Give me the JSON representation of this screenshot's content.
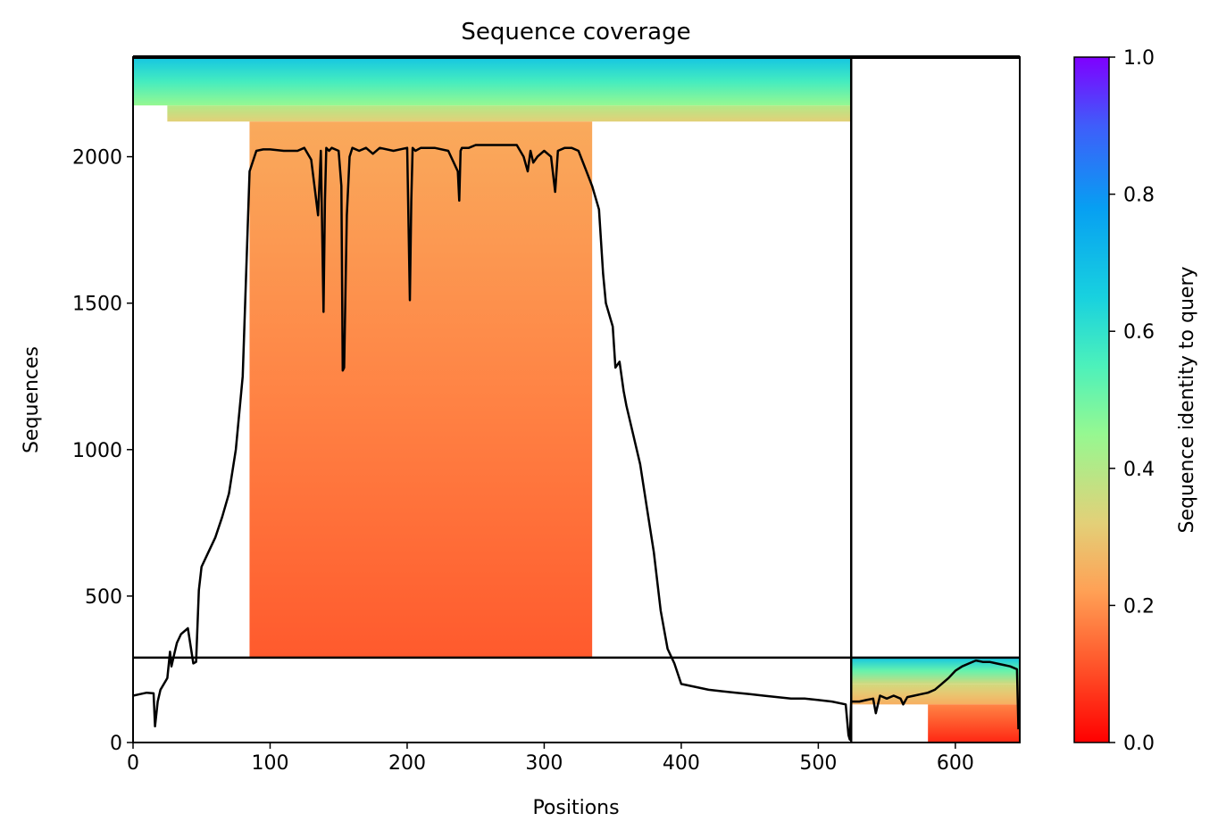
{
  "chart_data": {
    "type": "heatmap",
    "title": "Sequence coverage",
    "xlabel": "Positions",
    "ylabel": "Sequences",
    "xlim": [
      0,
      647
    ],
    "ylim": [
      0,
      2340
    ],
    "x_ticks": [
      0,
      100,
      200,
      300,
      400,
      500,
      600
    ],
    "y_ticks": [
      0,
      500,
      1000,
      1500,
      2000
    ],
    "x_tick_labels": [
      "0",
      "100",
      "200",
      "300",
      "400",
      "500",
      "600"
    ],
    "y_tick_labels": [
      "0",
      "500",
      "1000",
      "1500",
      "2000"
    ],
    "grid": false,
    "colorbar": {
      "label": "Sequence identity to query",
      "range": [
        0,
        1
      ],
      "ticks": [
        0.0,
        0.2,
        0.4,
        0.6,
        0.8,
        1.0
      ],
      "tick_labels": [
        "0.0",
        "0.2",
        "0.4",
        "0.6",
        "0.8",
        "1.0"
      ],
      "colormap": "rainbow_r"
    },
    "chain_boundaries": {
      "x": [
        524
      ],
      "y": [
        290
      ]
    },
    "coverage_blocks": [
      {
        "name": "chain-1",
        "x_range": [
          0,
          524
        ],
        "y_range": [
          290,
          2340
        ],
        "bands": [
          {
            "y_from": 2175,
            "y_to": 2340,
            "x_from": 0,
            "x_to": 524,
            "identity_from": 0.45,
            "identity_to": 0.68
          },
          {
            "y_from": 2120,
            "y_to": 2175,
            "x_from": 25,
            "x_to": 524,
            "identity_from": 0.32,
            "identity_to": 0.4
          },
          {
            "y_from": 290,
            "y_to": 2120,
            "x_from": 85,
            "x_to": 335,
            "identity_from": 0.12,
            "identity_to": 0.24
          }
        ]
      },
      {
        "name": "chain-2",
        "x_range": [
          524,
          647
        ],
        "y_range": [
          0,
          290
        ],
        "bands": [
          {
            "y_from": 200,
            "y_to": 290,
            "x_from": 524,
            "x_to": 647,
            "identity_from": 0.35,
            "identity_to": 0.68
          },
          {
            "y_from": 130,
            "y_to": 200,
            "x_from": 524,
            "x_to": 647,
            "identity_from": 0.25,
            "identity_to": 0.35
          },
          {
            "y_from": 0,
            "y_to": 130,
            "x_from": 580,
            "x_to": 647,
            "identity_from": 0.05,
            "identity_to": 0.18
          }
        ]
      }
    ],
    "series": [
      {
        "x": [
          0,
          5,
          10,
          15,
          16,
          18,
          20,
          25,
          27,
          28,
          30,
          32,
          35,
          40,
          44,
          46,
          48,
          50,
          55,
          60,
          65,
          70,
          75,
          80,
          85,
          90,
          95,
          100,
          110,
          120,
          125,
          130,
          135,
          137,
          139,
          140,
          141,
          143,
          145,
          150,
          152,
          153,
          154,
          156,
          158,
          160,
          165,
          170,
          175,
          180,
          190,
          200,
          202,
          203,
          204,
          206,
          210,
          220,
          230,
          237,
          238,
          239,
          240,
          245,
          250,
          260,
          270,
          280,
          285,
          288,
          290,
          292,
          295,
          300,
          305,
          308,
          310,
          315,
          320,
          325,
          330,
          335,
          340,
          343,
          345,
          350,
          352,
          355,
          358,
          360,
          365,
          370,
          375,
          380,
          385,
          390,
          395,
          400,
          410,
          420,
          430,
          440,
          450,
          460,
          470,
          480,
          490,
          500,
          510,
          520,
          522,
          523,
          524,
          530,
          535,
          540,
          542,
          545,
          550,
          555,
          560,
          562,
          565,
          570,
          575,
          580,
          585,
          590,
          595,
          600,
          605,
          610,
          615,
          620,
          625,
          630,
          635,
          640,
          645,
          646
        ],
        "y": [
          160,
          165,
          170,
          168,
          55,
          140,
          180,
          220,
          310,
          260,
          300,
          340,
          370,
          390,
          270,
          275,
          520,
          600,
          650,
          700,
          770,
          850,
          1000,
          1250,
          1950,
          2020,
          2025,
          2025,
          2020,
          2020,
          2030,
          1990,
          1800,
          2020,
          1470,
          1850,
          2030,
          2020,
          2030,
          2020,
          1900,
          1270,
          1280,
          1800,
          2000,
          2030,
          2020,
          2030,
          2010,
          2030,
          2020,
          2030,
          1510,
          1850,
          2030,
          2020,
          2030,
          2030,
          2020,
          1950,
          1850,
          2020,
          2030,
          2030,
          2040,
          2040,
          2040,
          2040,
          2000,
          1950,
          2020,
          1980,
          2000,
          2020,
          2000,
          1880,
          2020,
          2030,
          2030,
          2020,
          1960,
          1900,
          1820,
          1600,
          1500,
          1420,
          1280,
          1300,
          1200,
          1150,
          1050,
          950,
          800,
          650,
          450,
          320,
          270,
          200,
          190,
          180,
          175,
          170,
          165,
          160,
          155,
          150,
          150,
          145,
          140,
          130,
          25,
          10,
          140,
          140,
          145,
          150,
          100,
          160,
          150,
          160,
          150,
          130,
          155,
          160,
          165,
          170,
          180,
          200,
          220,
          245,
          260,
          270,
          280,
          275,
          275,
          270,
          265,
          260,
          250,
          45
        ],
        "color": "#000000"
      }
    ]
  }
}
